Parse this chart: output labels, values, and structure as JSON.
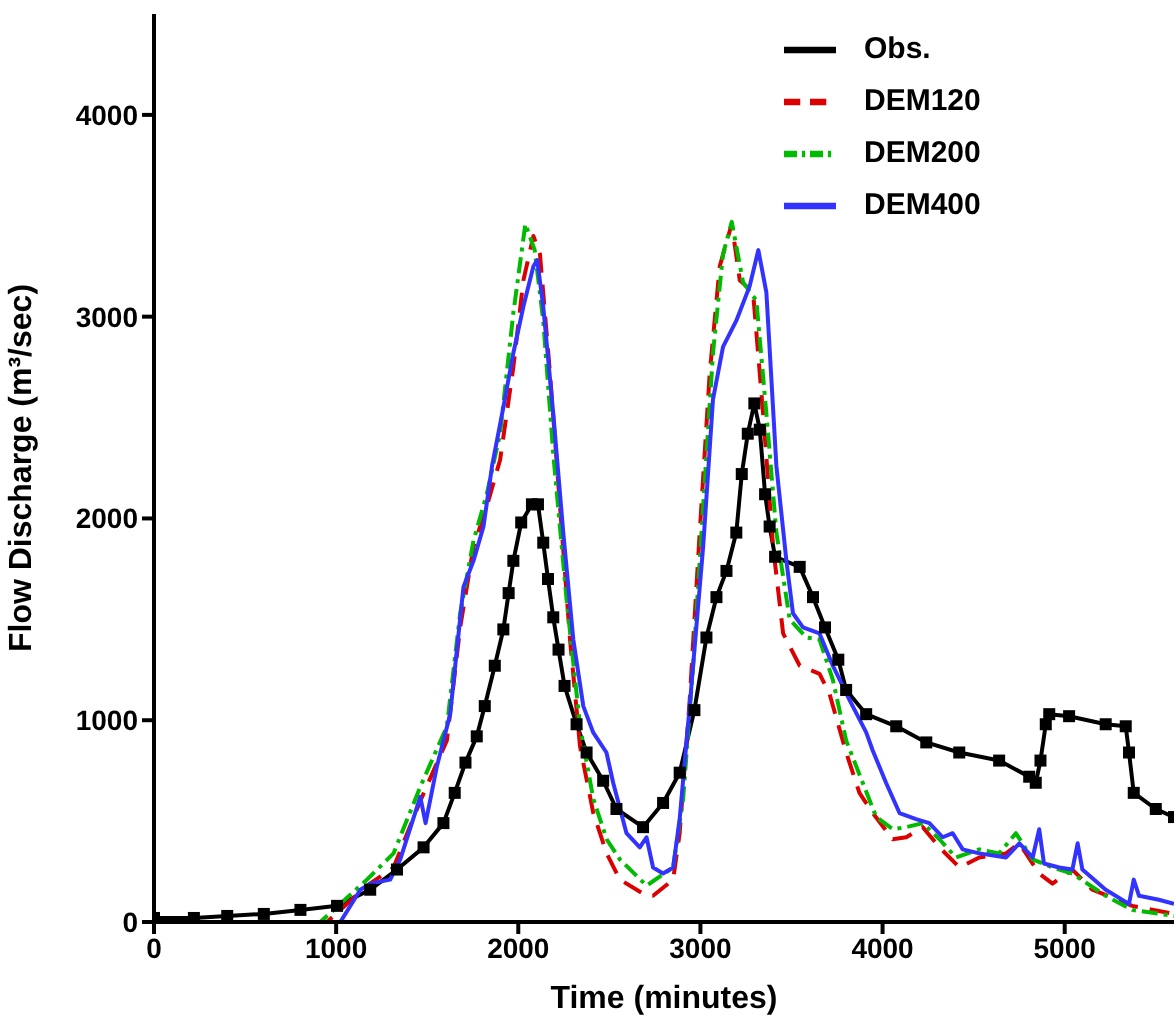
{
  "chart_data": {
    "type": "line",
    "xlabel": "Time (minutes)",
    "ylabel": "Flow Discharge (m³/sec)",
    "xlim": [
      0,
      5600
    ],
    "ylim": [
      0,
      4500
    ],
    "xticks": [
      0,
      1000,
      2000,
      3000,
      4000,
      5000
    ],
    "yticks": [
      0,
      1000,
      2000,
      3000,
      4000
    ],
    "legend": "top right",
    "series": [
      {
        "name": "Obs.",
        "color": "#000000",
        "marker": "square",
        "line_style": "solid",
        "x": [
          0,
          219,
          402,
          603,
          804,
          1005,
          1187,
          1334,
          1480,
          1589,
          1651,
          1710,
          1772,
          1816,
          1871,
          1918,
          1947,
          1973,
          2016,
          2075,
          2108,
          2137,
          2163,
          2192,
          2221,
          2254,
          2320,
          2375,
          2466,
          2539,
          2685,
          2795,
          2886,
          2967,
          3033,
          3088,
          3143,
          3197,
          3227,
          3260,
          3296,
          3326,
          3355,
          3380,
          3410,
          3545,
          3618,
          3684,
          3757,
          3800,
          3910,
          4075,
          4240,
          4421,
          4640,
          4805,
          4841,
          4867,
          4896,
          4915,
          5024,
          5225,
          5335,
          5353,
          5379,
          5500,
          5600
        ],
        "values": [
          20,
          20,
          30,
          40,
          60,
          80,
          160,
          260,
          370,
          490,
          640,
          790,
          920,
          1070,
          1270,
          1450,
          1630,
          1790,
          1980,
          2070,
          2070,
          1880,
          1700,
          1510,
          1350,
          1170,
          980,
          840,
          700,
          560,
          470,
          590,
          740,
          1050,
          1410,
          1610,
          1740,
          1930,
          2220,
          2420,
          2570,
          2440,
          2120,
          1960,
          1810,
          1760,
          1610,
          1460,
          1300,
          1150,
          1030,
          970,
          890,
          840,
          800,
          720,
          690,
          800,
          980,
          1030,
          1020,
          980,
          970,
          840,
          640,
          560,
          520
        ]
      },
      {
        "name": "DEM120",
        "color": "#dd0000",
        "marker": "none",
        "line_style": "dashed",
        "x": [
          0,
          950,
          1169,
          1315,
          1462,
          1608,
          1681,
          1754,
          1827,
          1900,
          1973,
          2028,
          2083,
          2119,
          2174,
          2229,
          2284,
          2339,
          2412,
          2485,
          2558,
          2704,
          2740,
          2850,
          2886,
          2941,
          2996,
          3051,
          3106,
          3172,
          3216,
          3289,
          3344,
          3399,
          3454,
          3545,
          3654,
          3709,
          3800,
          3873,
          3946,
          4056,
          4130,
          4221,
          4312,
          4422,
          4531,
          4678,
          4751,
          4860,
          4933,
          5042,
          5152,
          5371,
          5600
        ],
        "values": [
          0,
          0,
          180,
          270,
          600,
          900,
          1460,
          1860,
          2060,
          2290,
          2750,
          3180,
          3400,
          3310,
          2720,
          2060,
          1400,
          870,
          540,
          340,
          210,
          130,
          130,
          210,
          440,
          1100,
          1930,
          2720,
          3250,
          3460,
          3180,
          3120,
          2520,
          1860,
          1430,
          1270,
          1230,
          1130,
          840,
          640,
          540,
          410,
          420,
          470,
          370,
          270,
          320,
          340,
          390,
          240,
          190,
          260,
          160,
          80,
          40
        ]
      },
      {
        "name": "DEM200",
        "color": "#00bb00",
        "marker": "none",
        "line_style": "dashdot",
        "x": [
          0,
          913,
          1169,
          1315,
          1462,
          1608,
          1681,
          1754,
          1827,
          1900,
          1973,
          2039,
          2090,
          2137,
          2192,
          2265,
          2339,
          2412,
          2485,
          2558,
          2704,
          2850,
          2905,
          2960,
          3015,
          3069,
          3124,
          3172,
          3234,
          3307,
          3362,
          3417,
          3490,
          3582,
          3654,
          3727,
          3800,
          3891,
          3965,
          4056,
          4130,
          4221,
          4312,
          4403,
          4531,
          4640,
          4732,
          4824,
          4933,
          5042,
          5225,
          5371,
          5600
        ],
        "values": [
          0,
          0,
          210,
          340,
          670,
          970,
          1530,
          1890,
          2120,
          2420,
          3020,
          3460,
          3330,
          2980,
          2320,
          1600,
          970,
          610,
          410,
          310,
          180,
          270,
          610,
          1270,
          2060,
          2820,
          3310,
          3470,
          3170,
          3080,
          2520,
          1930,
          1500,
          1410,
          1400,
          1200,
          900,
          690,
          520,
          460,
          470,
          490,
          410,
          320,
          360,
          340,
          440,
          310,
          270,
          240,
          130,
          60,
          30
        ]
      },
      {
        "name": "DEM400",
        "color": "#3333ff",
        "marker": "none",
        "line_style": "solid",
        "x": [
          0,
          1023,
          1133,
          1187,
          1297,
          1352,
          1462,
          1491,
          1553,
          1626,
          1699,
          1754,
          1809,
          1856,
          1918,
          1973,
          2028,
          2083,
          2104,
          2137,
          2192,
          2247,
          2302,
          2357,
          2411,
          2484,
          2521,
          2594,
          2667,
          2704,
          2740,
          2795,
          2850,
          2886,
          2941,
          3015,
          3069,
          3124,
          3197,
          3270,
          3318,
          3362,
          3417,
          3472,
          3508,
          3563,
          3654,
          3727,
          3819,
          3910,
          3946,
          4019,
          4093,
          4184,
          4257,
          4330,
          4385,
          4440,
          4531,
          4678,
          4751,
          4824,
          4860,
          4886,
          4970,
          5042,
          5071,
          5097,
          5225,
          5353,
          5379,
          5408,
          5517,
          5600
        ],
        "values": [
          0,
          0,
          160,
          190,
          210,
          310,
          620,
          490,
          770,
          1030,
          1660,
          1790,
          1960,
          2260,
          2550,
          2820,
          3050,
          3250,
          3280,
          3050,
          2520,
          1930,
          1400,
          1070,
          940,
          840,
          690,
          440,
          370,
          420,
          270,
          240,
          270,
          510,
          1070,
          1860,
          2590,
          2850,
          2980,
          3150,
          3330,
          3120,
          2260,
          1790,
          1530,
          1460,
          1430,
          1270,
          1100,
          940,
          850,
          690,
          540,
          510,
          490,
          420,
          440,
          360,
          340,
          320,
          390,
          320,
          460,
          290,
          270,
          260,
          390,
          260,
          160,
          90,
          210,
          130,
          110,
          90
        ]
      }
    ]
  }
}
